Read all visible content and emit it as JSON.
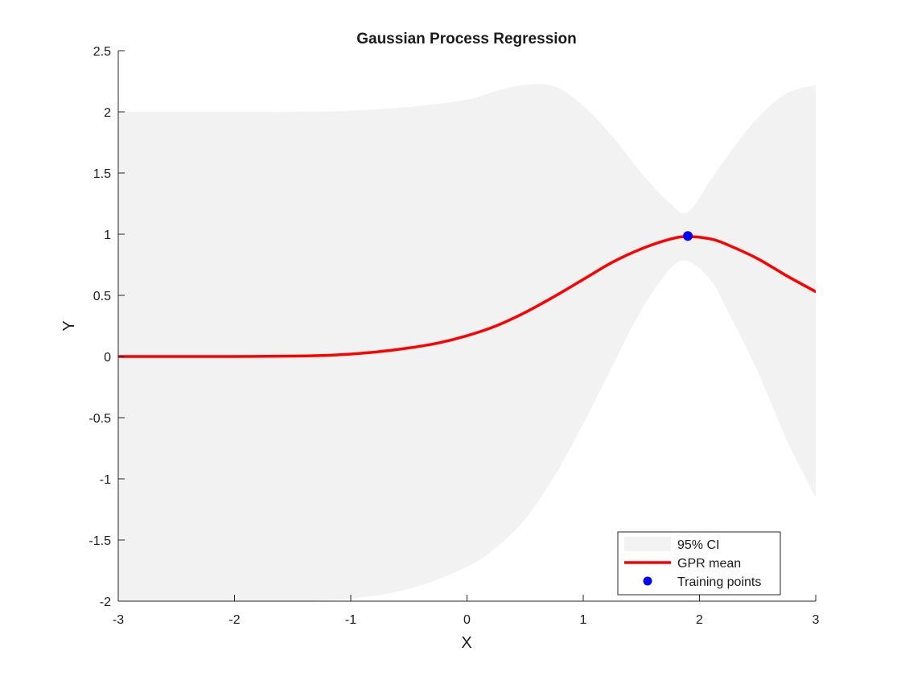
{
  "chart_data": {
    "type": "line",
    "title": "Gaussian Process Regression",
    "xlabel": "X",
    "ylabel": "Y",
    "xlim": [
      -3,
      3
    ],
    "ylim": [
      -2,
      2.5
    ],
    "xticks": [
      -3,
      -2,
      -1,
      0,
      1,
      2,
      3
    ],
    "yticks": [
      -2,
      -1.5,
      -1,
      -0.5,
      0,
      0.5,
      1,
      1.5,
      2,
      2.5
    ],
    "xtick_labels": [
      "-3",
      "-2",
      "-1",
      "0",
      "1",
      "2",
      "3"
    ],
    "ytick_labels": [
      "-2",
      "-1.5",
      "-1",
      "-0.5",
      "0",
      "0.5",
      "1",
      "1.5",
      "2",
      "2.5"
    ],
    "grid": false,
    "legend_position": "bottom-right",
    "series": [
      {
        "name": "95% CI",
        "kind": "band",
        "color": "#f2f2f2",
        "x": [
          -3,
          -2.5,
          -2,
          -1.5,
          -1,
          -0.5,
          0,
          0.25,
          0.5,
          0.75,
          1,
          1.25,
          1.5,
          1.75,
          1.9,
          2.1,
          2.25,
          2.5,
          2.75,
          3
        ],
        "upper": [
          2.0,
          2.0,
          2.0,
          2.0,
          2.01,
          2.04,
          2.1,
          2.17,
          2.22,
          2.21,
          2.05,
          1.8,
          1.5,
          1.25,
          1.18,
          1.45,
          1.65,
          1.95,
          2.15,
          2.22
        ],
        "lower": [
          -2.0,
          -2.0,
          -2.0,
          -2.0,
          -1.98,
          -1.9,
          -1.72,
          -1.56,
          -1.33,
          -0.98,
          -0.55,
          -0.08,
          0.38,
          0.72,
          0.78,
          0.62,
          0.36,
          -0.12,
          -0.68,
          -1.15
        ]
      },
      {
        "name": "GPR mean",
        "kind": "line",
        "color": "#ff0000",
        "x": [
          -3,
          -2.5,
          -2,
          -1.5,
          -1.25,
          -1,
          -0.75,
          -0.5,
          -0.25,
          0,
          0.25,
          0.5,
          0.75,
          1,
          1.25,
          1.5,
          1.75,
          1.9,
          2.1,
          2.25,
          2.5,
          2.75,
          3
        ],
        "y": [
          0.0,
          0.0,
          0.0,
          0.003,
          0.008,
          0.02,
          0.04,
          0.07,
          0.11,
          0.17,
          0.25,
          0.36,
          0.49,
          0.63,
          0.77,
          0.88,
          0.96,
          0.98,
          0.96,
          0.91,
          0.8,
          0.66,
          0.53
        ]
      },
      {
        "name": "Training points",
        "kind": "scatter",
        "color": "#0000ff",
        "x": [
          1.9
        ],
        "y": [
          0.985
        ]
      }
    ]
  }
}
